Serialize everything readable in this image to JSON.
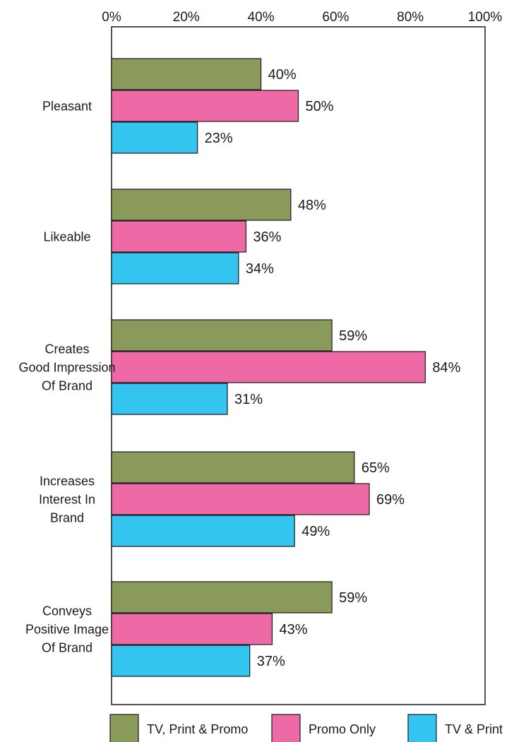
{
  "chart_data": {
    "type": "bar",
    "orientation": "horizontal",
    "categories": [
      [
        "Pleasant"
      ],
      [
        "Likeable"
      ],
      [
        "Creates",
        "Good Impression",
        "Of Brand"
      ],
      [
        "Increases",
        "Interest In",
        "Brand"
      ],
      [
        "Conveys",
        "Positive Image",
        "Of Brand"
      ]
    ],
    "series": [
      {
        "name": "TV, Print & Promo",
        "color": "#8a9a5b",
        "values": [
          40,
          48,
          59,
          65,
          59
        ]
      },
      {
        "name": "Promo Only",
        "color": "#ee6aa7",
        "values": [
          50,
          36,
          84,
          69,
          43
        ]
      },
      {
        "name": "TV & Print",
        "color": "#33c4f0",
        "values": [
          23,
          34,
          31,
          49,
          37
        ]
      }
    ],
    "value_suffix": "%",
    "xlim": [
      0,
      100
    ],
    "xticks": [
      "0%",
      "20%",
      "40%",
      "60%",
      "80%",
      "100%"
    ],
    "title": "",
    "xlabel": "",
    "ylabel": "",
    "grid": false,
    "legend_position": "bottom"
  }
}
